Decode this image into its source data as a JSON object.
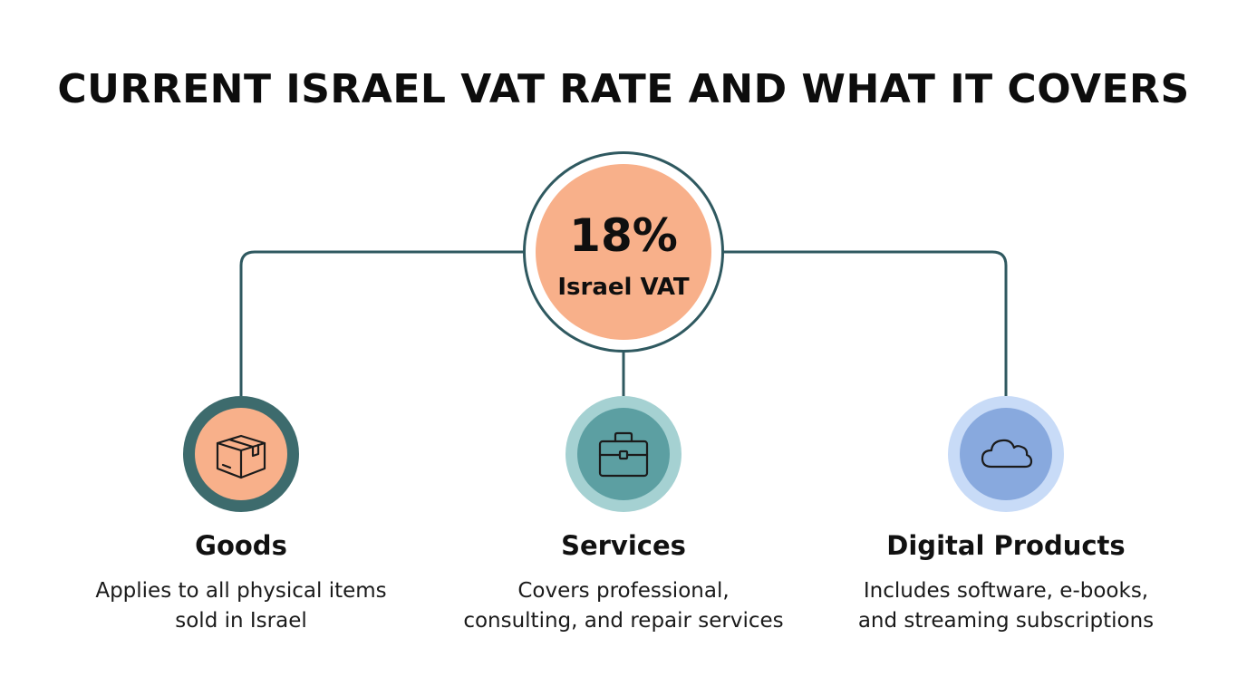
{
  "title": "CURRENT ISRAEL VAT RATE AND WHAT IT COVERS",
  "hub": {
    "rate": "18%",
    "label": "Israel VAT"
  },
  "colors": {
    "connector": "#2f5960",
    "hub_fill": "#f8b08a",
    "goods_ring": "#3d6b6d",
    "goods_fill": "#f8b08a",
    "services_ring": "#a5d1d2",
    "services_fill": "#5c9fa2",
    "digital_ring": "#c8dbf7",
    "digital_fill": "#88a9de"
  },
  "categories": [
    {
      "icon": "package-box-icon",
      "title": "Goods",
      "description_line1": "Applies to all physical items",
      "description_line2": "sold in Israel"
    },
    {
      "icon": "briefcase-icon",
      "title": "Services",
      "description_line1": "Covers professional,",
      "description_line2": "consulting, and repair services"
    },
    {
      "icon": "cloud-icon",
      "title": "Digital Products",
      "description_line1": "Includes software, e-books,",
      "description_line2": "and streaming subscriptions"
    }
  ]
}
